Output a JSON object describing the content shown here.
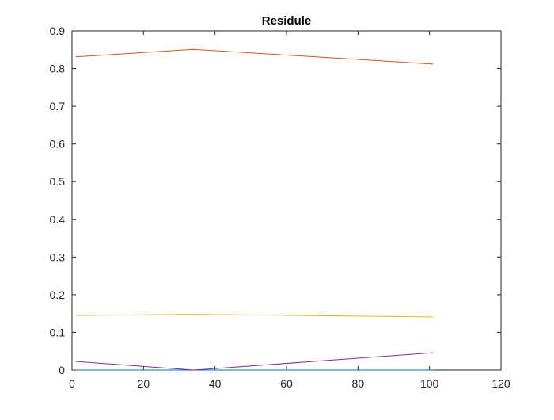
{
  "chart_data": {
    "type": "line",
    "title": "Residule",
    "xlabel": "",
    "ylabel": "",
    "xlim": [
      0,
      120
    ],
    "ylim": [
      0,
      0.9
    ],
    "xticks": [
      0,
      20,
      40,
      60,
      80,
      100,
      120
    ],
    "yticks": [
      0,
      0.1,
      0.2,
      0.3,
      0.4,
      0.5,
      0.6,
      0.7,
      0.8,
      0.9
    ],
    "xtick_labels": [
      "0",
      "20",
      "40",
      "60",
      "80",
      "100",
      "120"
    ],
    "ytick_labels": [
      "0",
      "0.1",
      "0.2",
      "0.3",
      "0.4",
      "0.5",
      "0.6",
      "0.7",
      "0.8",
      "0.9"
    ],
    "grid": false,
    "legend": "none",
    "series": [
      {
        "color": "#0072BD",
        "x": [
          1,
          34,
          101
        ],
        "y": [
          0.0,
          0.0,
          0.0
        ]
      },
      {
        "color": "#D95319",
        "x": [
          1,
          34,
          101
        ],
        "y": [
          0.831,
          0.851,
          0.812
        ]
      },
      {
        "color": "#EDB120",
        "x": [
          1,
          34,
          101
        ],
        "y": [
          0.145,
          0.148,
          0.141
        ]
      },
      {
        "color": "#7E2F8E",
        "x": [
          1,
          34,
          101
        ],
        "y": [
          0.023,
          0.0,
          0.046
        ]
      }
    ]
  }
}
